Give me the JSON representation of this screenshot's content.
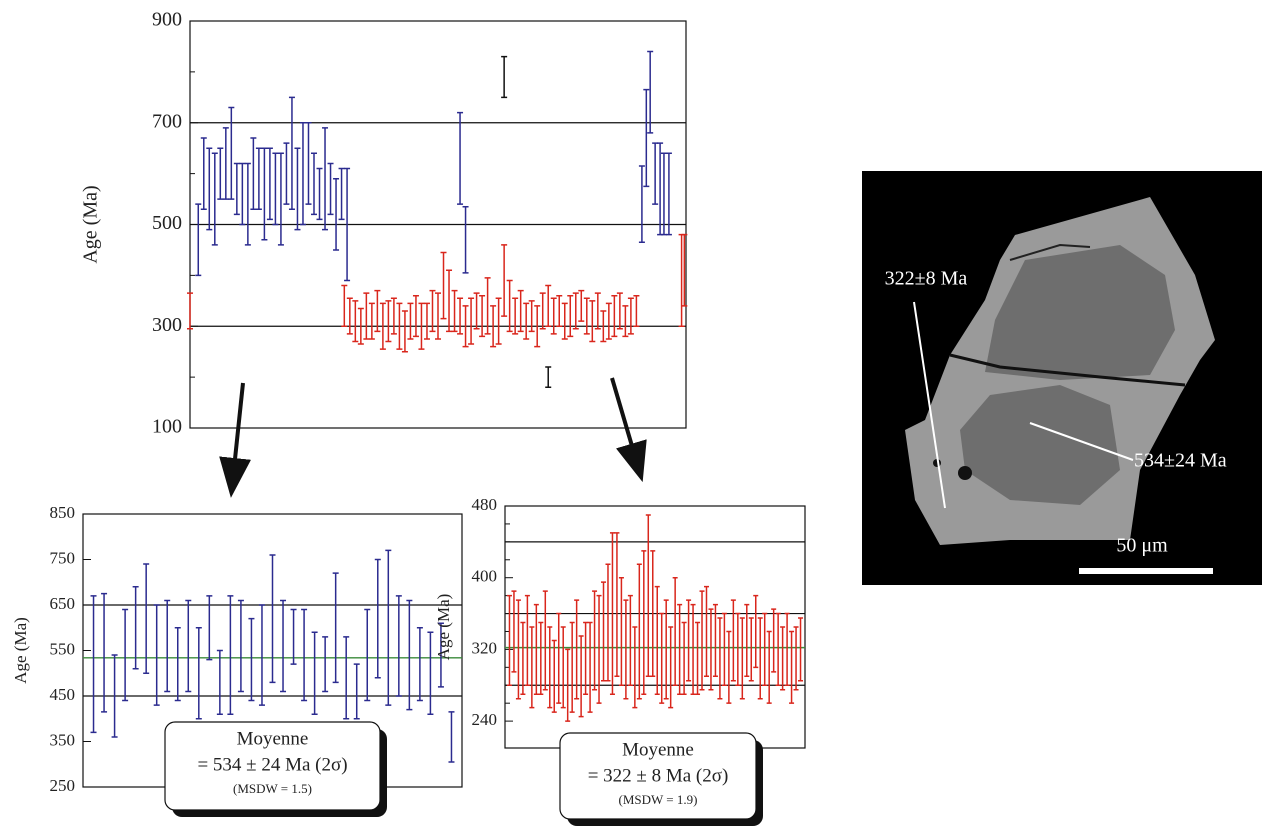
{
  "chart_data": [
    {
      "type": "errorbar",
      "y_label": "Age (Ma)",
      "xlim": [
        0,
        90
      ],
      "ylim": [
        100,
        900
      ],
      "yticks": [
        100,
        300,
        500,
        700,
        900
      ],
      "minor_yticks": [
        200,
        400,
        600,
        800
      ],
      "hlines": [
        300,
        500,
        700
      ],
      "series": [
        {
          "color": "#2b2b8f",
          "x": [
            1.5,
            2.5,
            3.5,
            4.5,
            5.5,
            6.5,
            7.5,
            8.5,
            9.5,
            10.5,
            11.5,
            12.5,
            13.5,
            14.5,
            15.5,
            16.5,
            17.5,
            18.5,
            19.5,
            20.5,
            21.5,
            22.5,
            23.5,
            24.5,
            25.5,
            26.5,
            27.5,
            28.5,
            49,
            50,
            82,
            82.8,
            83.5,
            84.4,
            85.3,
            86,
            86.9
          ],
          "values": [
            470,
            600,
            570,
            550,
            600,
            620,
            640,
            570,
            560,
            540,
            600,
            590,
            560,
            580,
            570,
            550,
            600,
            640,
            570,
            600,
            620,
            580,
            560,
            590,
            570,
            520,
            560,
            500,
            630,
            470,
            540,
            670,
            760,
            600,
            570,
            560,
            560
          ],
          "errors": [
            70,
            70,
            80,
            90,
            50,
            70,
            90,
            50,
            60,
            80,
            70,
            60,
            90,
            70,
            70,
            90,
            60,
            110,
            80,
            100,
            80,
            60,
            50,
            100,
            50,
            70,
            50,
            110,
            90,
            65,
            75,
            95,
            80,
            60,
            90,
            80,
            80
          ]
        },
        {
          "color": "#d9261c",
          "x": [
            0,
            28,
            29,
            30,
            31,
            32,
            33,
            34,
            35,
            36,
            37,
            38,
            39,
            40,
            41,
            42,
            43,
            44,
            45,
            46,
            47,
            48,
            49,
            50,
            51,
            52,
            53,
            54,
            55,
            56,
            57,
            58,
            59,
            60,
            61,
            62,
            63,
            64,
            65,
            66,
            67,
            68,
            69,
            70,
            71,
            72,
            73,
            74,
            75,
            76,
            77,
            78,
            79,
            80,
            81,
            89.2,
            89.7
          ],
          "values": [
            330,
            340,
            320,
            310,
            300,
            320,
            310,
            330,
            300,
            310,
            320,
            300,
            290,
            310,
            320,
            300,
            310,
            330,
            320,
            380,
            350,
            330,
            320,
            300,
            310,
            330,
            320,
            340,
            300,
            310,
            390,
            340,
            320,
            330,
            310,
            320,
            300,
            330,
            340,
            320,
            330,
            310,
            320,
            330,
            340,
            320,
            310,
            330,
            300,
            310,
            320,
            330,
            310,
            320,
            330,
            390,
            410
          ],
          "errors": [
            35,
            40,
            35,
            40,
            35,
            45,
            35,
            40,
            45,
            40,
            35,
            45,
            40,
            35,
            40,
            45,
            35,
            40,
            45,
            65,
            60,
            40,
            35,
            40,
            45,
            35,
            40,
            55,
            40,
            45,
            70,
            50,
            35,
            40,
            35,
            30,
            40,
            35,
            40,
            35,
            30,
            35,
            40,
            35,
            30,
            35,
            40,
            35,
            30,
            35,
            40,
            35,
            30,
            35,
            30,
            90,
            70
          ]
        },
        {
          "color": "#111111",
          "x": [
            57,
            65
          ],
          "values": [
            790,
            200
          ],
          "errors": [
            40,
            20
          ]
        }
      ]
    },
    {
      "type": "errorbar",
      "y_label": "Age (Ma)",
      "xlim": [
        0,
        36
      ],
      "ylim": [
        250,
        850
      ],
      "yticks": [
        250,
        350,
        450,
        550,
        650,
        750,
        850
      ],
      "hlines": [
        450,
        650
      ],
      "mean_line": 534,
      "mean_color": "#3a8a3a",
      "box": [
        "Moyenne",
        "= 534 ± 24 Ma (2σ)",
        "(MSDW = 1.5)"
      ],
      "series": [
        {
          "color": "#2b2b8f",
          "x": [
            1,
            2,
            3,
            4,
            5,
            6,
            7,
            8,
            9,
            10,
            11,
            12,
            13,
            14,
            15,
            16,
            17,
            18,
            19,
            20,
            21,
            22,
            23,
            24,
            25,
            26,
            27,
            28,
            29,
            30,
            31,
            32,
            33,
            34,
            35
          ],
          "values": [
            520,
            545,
            450,
            540,
            600,
            620,
            540,
            560,
            520,
            560,
            500,
            600,
            480,
            540,
            560,
            530,
            540,
            620,
            560,
            580,
            540,
            500,
            520,
            600,
            490,
            460,
            540,
            620,
            600,
            560,
            540,
            520,
            500,
            540,
            360
          ],
          "errors": [
            150,
            130,
            90,
            100,
            90,
            120,
            110,
            100,
            80,
            100,
            100,
            70,
            70,
            130,
            100,
            90,
            110,
            140,
            100,
            60,
            100,
            90,
            60,
            120,
            90,
            60,
            100,
            130,
            170,
            110,
            120,
            80,
            90,
            70,
            55
          ]
        }
      ]
    },
    {
      "type": "errorbar",
      "y_label": "Age (Ma)",
      "xlim": [
        0,
        67
      ],
      "ylim": [
        210,
        480
      ],
      "yticks": [
        240,
        320,
        400,
        480
      ],
      "minor_yticks": [
        260,
        280,
        300,
        340,
        360,
        380,
        420,
        440,
        460
      ],
      "hlines": [
        280,
        360,
        440
      ],
      "mean_line": 322,
      "mean_color": "#3a8a3a",
      "box": [
        "Moyenne",
        "= 322 ± 8 Ma (2σ)",
        "(MSDW = 1.9)"
      ],
      "series": [
        {
          "color": "#d9261c",
          "x": [
            1,
            2,
            3,
            4,
            5,
            6,
            7,
            8,
            9,
            10,
            11,
            12,
            13,
            14,
            15,
            16,
            17,
            18,
            19,
            20,
            21,
            22,
            23,
            24,
            25,
            26,
            27,
            28,
            29,
            30,
            31,
            32,
            33,
            34,
            35,
            36,
            37,
            38,
            39,
            40,
            41,
            42,
            43,
            44,
            45,
            46,
            47,
            48,
            49,
            50,
            51,
            52,
            53,
            54,
            55,
            56,
            57,
            58,
            59,
            60,
            61,
            62,
            63,
            64,
            65,
            66
          ],
          "values": [
            330,
            340,
            320,
            310,
            330,
            300,
            320,
            310,
            330,
            300,
            290,
            310,
            300,
            280,
            300,
            320,
            290,
            310,
            300,
            330,
            320,
            340,
            350,
            360,
            370,
            340,
            320,
            330,
            300,
            340,
            350,
            380,
            360,
            330,
            310,
            320,
            300,
            340,
            320,
            310,
            330,
            320,
            310,
            330,
            340,
            320,
            330,
            310,
            320,
            300,
            330,
            320,
            310,
            330,
            320,
            340,
            310,
            320,
            300,
            330,
            320,
            310,
            320,
            300,
            310,
            320
          ],
          "errors": [
            50,
            45,
            55,
            40,
            50,
            45,
            50,
            40,
            55,
            45,
            40,
            50,
            45,
            40,
            50,
            55,
            45,
            40,
            50,
            55,
            60,
            55,
            65,
            90,
            80,
            60,
            55,
            50,
            45,
            75,
            80,
            90,
            70,
            60,
            50,
            55,
            45,
            60,
            50,
            40,
            45,
            50,
            40,
            55,
            50,
            45,
            40,
            45,
            40,
            40,
            45,
            40,
            45,
            40,
            35,
            40,
            45,
            40,
            40,
            35,
            40,
            35,
            40,
            40,
            35,
            35
          ]
        }
      ]
    }
  ],
  "image": {
    "labels": [
      "322±8 Ma",
      "534±24 Ma"
    ],
    "scale": "50 μm"
  }
}
